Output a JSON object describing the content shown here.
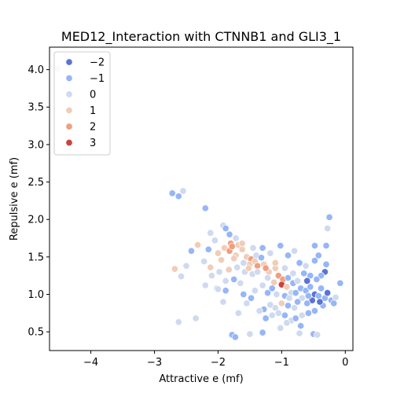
{
  "chart_data": {
    "type": "scatter",
    "title": "MED12_Interaction with CTNNB1 and GLI3_1",
    "xlabel": "Attractive e (mf)",
    "ylabel": "Repulsive e (mf)",
    "xlim": [
      -4.65,
      0.12
    ],
    "ylim": [
      0.25,
      4.3
    ],
    "xticks": [
      -4,
      -3,
      -2,
      -1,
      0
    ],
    "yticks": [
      0.5,
      1.0,
      1.5,
      2.0,
      2.5,
      3.0,
      3.5,
      4.0
    ],
    "xtick_labels": [
      "−4",
      "−3",
      "−2",
      "−1",
      "0"
    ],
    "ytick_labels": [
      "0.5",
      "1.0",
      "1.5",
      "2.0",
      "2.5",
      "3.0",
      "3.5",
      "4.0"
    ],
    "grid": false,
    "legend": {
      "placement": "top-left",
      "entries": [
        {
          "label": "−2",
          "value": -2,
          "color": "#5b73d6"
        },
        {
          "label": "−1",
          "value": -1,
          "color": "#97b6f7"
        },
        {
          "label": "0",
          "value": 0,
          "color": "#cfdaf0"
        },
        {
          "label": "1",
          "value": 1,
          "color": "#f1cdb9"
        },
        {
          "label": "2",
          "value": 2,
          "color": "#f09e80"
        },
        {
          "label": "3",
          "value": 3,
          "color": "#c9433f"
        }
      ]
    },
    "points": [
      {
        "x": -4.52,
        "y": 4.01,
        "c": 0
      },
      {
        "x": -2.72,
        "y": 2.35,
        "c": -1
      },
      {
        "x": -2.55,
        "y": 2.38,
        "c": 0
      },
      {
        "x": -2.62,
        "y": 2.31,
        "c": -1
      },
      {
        "x": -2.2,
        "y": 2.15,
        "c": -1
      },
      {
        "x": -1.92,
        "y": 1.92,
        "c": 0
      },
      {
        "x": -1.88,
        "y": 1.88,
        "c": -1
      },
      {
        "x": -2.12,
        "y": 1.82,
        "c": 0
      },
      {
        "x": -2.05,
        "y": 1.72,
        "c": 0
      },
      {
        "x": -2.15,
        "y": 1.6,
        "c": -1
      },
      {
        "x": -1.82,
        "y": 1.8,
        "c": -1
      },
      {
        "x": -1.72,
        "y": 1.75,
        "c": 0
      },
      {
        "x": -1.8,
        "y": 1.68,
        "c": 2
      },
      {
        "x": -1.68,
        "y": 1.66,
        "c": 1
      },
      {
        "x": -1.9,
        "y": 1.62,
        "c": 1
      },
      {
        "x": -2.32,
        "y": 1.66,
        "c": 1
      },
      {
        "x": -2.0,
        "y": 1.55,
        "c": 1
      },
      {
        "x": -1.82,
        "y": 1.58,
        "c": 2
      },
      {
        "x": -1.78,
        "y": 1.64,
        "c": 2
      },
      {
        "x": -1.62,
        "y": 1.6,
        "c": 1
      },
      {
        "x": -1.72,
        "y": 1.52,
        "c": 1
      },
      {
        "x": -1.95,
        "y": 1.46,
        "c": 1
      },
      {
        "x": -2.22,
        "y": 1.44,
        "c": 0
      },
      {
        "x": -1.55,
        "y": 1.5,
        "c": 1
      },
      {
        "x": -1.48,
        "y": 1.47,
        "c": 2
      },
      {
        "x": -1.4,
        "y": 1.52,
        "c": 0
      },
      {
        "x": -1.32,
        "y": 1.49,
        "c": -1
      },
      {
        "x": -1.6,
        "y": 1.42,
        "c": 0
      },
      {
        "x": -1.5,
        "y": 1.4,
        "c": 1
      },
      {
        "x": -1.42,
        "y": 1.44,
        "c": 1
      },
      {
        "x": -1.38,
        "y": 1.38,
        "c": 2
      },
      {
        "x": -1.28,
        "y": 1.4,
        "c": 1
      },
      {
        "x": -1.7,
        "y": 1.36,
        "c": 0
      },
      {
        "x": -1.83,
        "y": 1.33,
        "c": 1
      },
      {
        "x": -1.98,
        "y": 1.3,
        "c": 0
      },
      {
        "x": -2.12,
        "y": 1.36,
        "c": 1
      },
      {
        "x": -2.5,
        "y": 1.38,
        "c": 0
      },
      {
        "x": -2.68,
        "y": 1.34,
        "c": 1
      },
      {
        "x": -2.58,
        "y": 1.24,
        "c": 0
      },
      {
        "x": -1.58,
        "y": 1.3,
        "c": 0
      },
      {
        "x": -1.46,
        "y": 1.27,
        "c": 0
      },
      {
        "x": -1.2,
        "y": 1.3,
        "c": 1
      },
      {
        "x": -1.1,
        "y": 1.35,
        "c": 1
      },
      {
        "x": -1.22,
        "y": 1.22,
        "c": 0
      },
      {
        "x": -1.05,
        "y": 1.25,
        "c": 2
      },
      {
        "x": -0.98,
        "y": 1.2,
        "c": 2
      },
      {
        "x": -1.12,
        "y": 1.16,
        "c": 1
      },
      {
        "x": -1.0,
        "y": 1.13,
        "c": 3
      },
      {
        "x": -0.92,
        "y": 1.1,
        "c": 1
      },
      {
        "x": -1.3,
        "y": 1.12,
        "c": 0
      },
      {
        "x": -1.42,
        "y": 1.05,
        "c": 0
      },
      {
        "x": -1.22,
        "y": 1.02,
        "c": -1
      },
      {
        "x": -1.08,
        "y": 1.0,
        "c": 0
      },
      {
        "x": -0.95,
        "y": 0.98,
        "c": -1
      },
      {
        "x": -0.85,
        "y": 1.02,
        "c": 0
      },
      {
        "x": -0.82,
        "y": 1.15,
        "c": -1
      },
      {
        "x": -0.75,
        "y": 1.18,
        "c": 0
      },
      {
        "x": -0.7,
        "y": 1.08,
        "c": -1
      },
      {
        "x": -0.62,
        "y": 1.05,
        "c": -1
      },
      {
        "x": -0.55,
        "y": 1.1,
        "c": -1
      },
      {
        "x": -0.48,
        "y": 1.0,
        "c": -2
      },
      {
        "x": -0.42,
        "y": 0.98,
        "c": -1
      },
      {
        "x": -0.38,
        "y": 1.08,
        "c": -1
      },
      {
        "x": -0.32,
        "y": 0.95,
        "c": -1
      },
      {
        "x": -0.28,
        "y": 1.02,
        "c": -2
      },
      {
        "x": -0.22,
        "y": 0.92,
        "c": -1
      },
      {
        "x": -0.15,
        "y": 0.96,
        "c": 0
      },
      {
        "x": -0.52,
        "y": 0.92,
        "c": -2
      },
      {
        "x": -0.6,
        "y": 0.88,
        "c": -1
      },
      {
        "x": -0.68,
        "y": 0.95,
        "c": 0
      },
      {
        "x": -0.75,
        "y": 0.9,
        "c": -1
      },
      {
        "x": -0.8,
        "y": 0.82,
        "c": 0
      },
      {
        "x": -0.9,
        "y": 0.85,
        "c": -1
      },
      {
        "x": -1.0,
        "y": 0.88,
        "c": 1
      },
      {
        "x": -1.1,
        "y": 0.82,
        "c": 0
      },
      {
        "x": -1.18,
        "y": 0.86,
        "c": 0
      },
      {
        "x": -1.28,
        "y": 0.8,
        "c": -1
      },
      {
        "x": -1.35,
        "y": 0.78,
        "c": 0
      },
      {
        "x": -1.48,
        "y": 0.95,
        "c": -1
      },
      {
        "x": -1.55,
        "y": 0.88,
        "c": 0
      },
      {
        "x": -1.6,
        "y": 1.0,
        "c": -1
      },
      {
        "x": -1.65,
        "y": 1.15,
        "c": 0
      },
      {
        "x": -1.75,
        "y": 1.2,
        "c": -1
      },
      {
        "x": -1.88,
        "y": 1.18,
        "c": 0
      },
      {
        "x": -2.02,
        "y": 1.08,
        "c": 0
      },
      {
        "x": -1.88,
        "y": 1.05,
        "c": -1
      },
      {
        "x": -1.92,
        "y": 0.9,
        "c": 0
      },
      {
        "x": -1.68,
        "y": 0.75,
        "c": 0
      },
      {
        "x": -1.25,
        "y": 0.68,
        "c": -1
      },
      {
        "x": -1.15,
        "y": 0.72,
        "c": 0
      },
      {
        "x": -1.05,
        "y": 0.75,
        "c": 0
      },
      {
        "x": -0.95,
        "y": 0.72,
        "c": -1
      },
      {
        "x": -0.85,
        "y": 0.65,
        "c": 0
      },
      {
        "x": -0.78,
        "y": 0.68,
        "c": -1
      },
      {
        "x": -0.68,
        "y": 0.72,
        "c": 0
      },
      {
        "x": -0.58,
        "y": 0.75,
        "c": -1
      },
      {
        "x": -0.48,
        "y": 0.78,
        "c": -1
      },
      {
        "x": -1.02,
        "y": 0.55,
        "c": 0
      },
      {
        "x": -0.92,
        "y": 0.62,
        "c": 0
      },
      {
        "x": -1.78,
        "y": 0.46,
        "c": -1
      },
      {
        "x": -1.73,
        "y": 0.43,
        "c": -1
      },
      {
        "x": -1.5,
        "y": 0.47,
        "c": 0
      },
      {
        "x": -1.3,
        "y": 0.49,
        "c": -1
      },
      {
        "x": -0.72,
        "y": 0.48,
        "c": 0
      },
      {
        "x": -0.5,
        "y": 0.47,
        "c": -1
      },
      {
        "x": -0.44,
        "y": 0.46,
        "c": 0
      },
      {
        "x": -0.7,
        "y": 0.58,
        "c": -1
      },
      {
        "x": -2.35,
        "y": 0.68,
        "c": 0
      },
      {
        "x": -2.62,
        "y": 0.63,
        "c": 0
      },
      {
        "x": -1.45,
        "y": 1.62,
        "c": 0
      },
      {
        "x": -1.3,
        "y": 1.62,
        "c": -1
      },
      {
        "x": -1.18,
        "y": 1.55,
        "c": 0
      },
      {
        "x": -1.02,
        "y": 1.65,
        "c": -1
      },
      {
        "x": -0.9,
        "y": 1.52,
        "c": -1
      },
      {
        "x": -0.8,
        "y": 1.58,
        "c": 0
      },
      {
        "x": -0.72,
        "y": 1.42,
        "c": -1
      },
      {
        "x": -0.62,
        "y": 1.38,
        "c": 0
      },
      {
        "x": -0.48,
        "y": 1.65,
        "c": -1
      },
      {
        "x": -0.42,
        "y": 1.52,
        "c": -1
      },
      {
        "x": -0.48,
        "y": 1.45,
        "c": -1
      },
      {
        "x": -0.25,
        "y": 2.03,
        "c": -1
      },
      {
        "x": -0.28,
        "y": 1.88,
        "c": 0
      },
      {
        "x": -0.3,
        "y": 1.65,
        "c": -1
      },
      {
        "x": -0.3,
        "y": 1.4,
        "c": -1
      },
      {
        "x": -0.32,
        "y": 1.3,
        "c": -2
      },
      {
        "x": -0.38,
        "y": 1.25,
        "c": -1
      },
      {
        "x": -0.45,
        "y": 1.2,
        "c": -1
      },
      {
        "x": -0.55,
        "y": 1.25,
        "c": -1
      },
      {
        "x": -0.6,
        "y": 1.18,
        "c": -2
      },
      {
        "x": -0.65,
        "y": 1.28,
        "c": -1
      },
      {
        "x": -0.82,
        "y": 1.28,
        "c": 0
      },
      {
        "x": -0.9,
        "y": 1.22,
        "c": -1
      },
      {
        "x": -0.08,
        "y": 1.15,
        "c": -1
      },
      {
        "x": -0.18,
        "y": 0.88,
        "c": -1
      },
      {
        "x": -0.35,
        "y": 0.85,
        "c": -1
      },
      {
        "x": -0.4,
        "y": 0.9,
        "c": -2
      },
      {
        "x": -1.62,
        "y": 1.68,
        "c": 1
      },
      {
        "x": -1.75,
        "y": 1.48,
        "c": 1
      },
      {
        "x": -1.52,
        "y": 1.35,
        "c": 1
      },
      {
        "x": -1.38,
        "y": 1.3,
        "c": 0
      },
      {
        "x": -1.25,
        "y": 1.35,
        "c": 2
      },
      {
        "x": -2.2,
        "y": 1.12,
        "c": 0
      },
      {
        "x": -2.0,
        "y": 1.07,
        "c": 0
      },
      {
        "x": -2.42,
        "y": 1.58,
        "c": -1
      },
      {
        "x": -2.1,
        "y": 1.25,
        "c": 0
      },
      {
        "x": -1.1,
        "y": 1.42,
        "c": 1
      },
      {
        "x": -0.95,
        "y": 1.35,
        "c": 0
      },
      {
        "x": -1.15,
        "y": 1.08,
        "c": -1
      },
      {
        "x": -0.78,
        "y": 1.02,
        "c": -1
      },
      {
        "x": -0.58,
        "y": 0.98,
        "c": -1
      },
      {
        "x": -0.88,
        "y": 0.95,
        "c": 0
      }
    ]
  }
}
